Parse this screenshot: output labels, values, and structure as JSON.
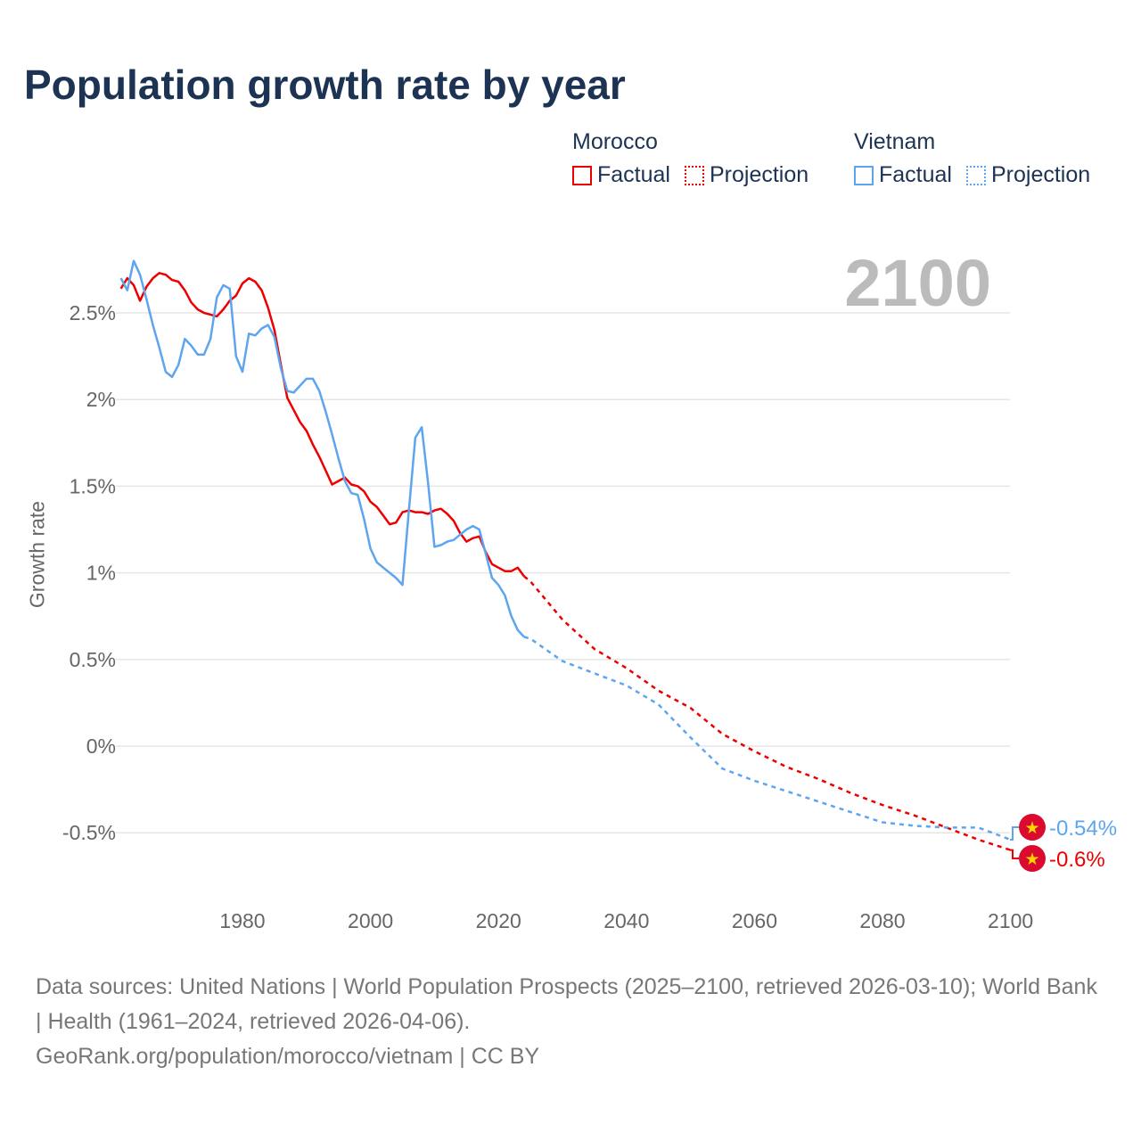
{
  "chart_data": {
    "type": "line",
    "title": "Population growth rate by year",
    "xlabel": "",
    "ylabel": "Growth rate",
    "xlim": [
      1961,
      2100
    ],
    "ylim": [
      -0.75,
      2.85
    ],
    "x_ticks": [
      "1980",
      "2000",
      "2020",
      "2040",
      "2060",
      "2080",
      "2100"
    ],
    "y_ticks": [
      {
        "value": 2.5,
        "label": "2.5%"
      },
      {
        "value": 2,
        "label": "2%"
      },
      {
        "value": 1.5,
        "label": "1.5%"
      },
      {
        "value": 1,
        "label": "1%"
      },
      {
        "value": 0.5,
        "label": "0.5%"
      },
      {
        "value": 0,
        "label": "0%"
      },
      {
        "value": -0.5,
        "label": "-0.5%"
      }
    ],
    "year_watermark": "2100",
    "grid": true,
    "legend_placement": "top-right",
    "series": [
      {
        "name": "Morocco",
        "color": "#ee0000",
        "factual_label": "Factual",
        "projection_label": "Projection",
        "end_label": "-0.6%",
        "factual": {
          "x_start": 1961,
          "values": [
            2.64,
            2.7,
            2.66,
            2.57,
            2.65,
            2.7,
            2.73,
            2.72,
            2.69,
            2.68,
            2.63,
            2.56,
            2.52,
            2.5,
            2.49,
            2.48,
            2.52,
            2.57,
            2.6,
            2.67,
            2.7,
            2.68,
            2.63,
            2.53,
            2.4,
            2.2,
            2.01,
            1.94,
            1.87,
            1.82,
            1.74,
            1.67,
            1.59,
            1.51,
            1.53,
            1.55,
            1.51,
            1.5,
            1.47,
            1.41,
            1.38,
            1.33,
            1.28,
            1.29,
            1.35,
            1.36,
            1.35,
            1.35,
            1.34,
            1.36,
            1.37,
            1.34,
            1.3,
            1.23,
            1.18,
            1.2,
            1.21,
            1.12,
            1.05,
            1.03,
            1.01,
            1.01,
            1.03,
            0.98
          ]
        },
        "projection": {
          "x": [
            2024,
            2025,
            2030,
            2035,
            2040,
            2045,
            2050,
            2055,
            2060,
            2065,
            2070,
            2075,
            2080,
            2085,
            2090,
            2095,
            2100
          ],
          "values": [
            0.98,
            0.95,
            0.73,
            0.56,
            0.45,
            0.32,
            0.22,
            0.07,
            -0.03,
            -0.12,
            -0.19,
            -0.27,
            -0.34,
            -0.4,
            -0.47,
            -0.54,
            -0.6
          ]
        }
      },
      {
        "name": "Vietnam",
        "color": "#5da5ee",
        "factual_label": "Factual",
        "projection_label": "Projection",
        "end_label": "-0.54%",
        "factual": {
          "x_start": 1961,
          "values": [
            2.7,
            2.63,
            2.8,
            2.72,
            2.58,
            2.43,
            2.3,
            2.16,
            2.13,
            2.2,
            2.35,
            2.31,
            2.26,
            2.26,
            2.35,
            2.59,
            2.66,
            2.64,
            2.25,
            2.16,
            2.38,
            2.37,
            2.41,
            2.43,
            2.36,
            2.18,
            2.05,
            2.04,
            2.08,
            2.12,
            2.12,
            2.05,
            1.93,
            1.8,
            1.66,
            1.53,
            1.46,
            1.45,
            1.31,
            1.14,
            1.06,
            1.03,
            1.0,
            0.97,
            0.93,
            1.36,
            1.78,
            1.84,
            1.52,
            1.15,
            1.16,
            1.18,
            1.19,
            1.22,
            1.25,
            1.27,
            1.25,
            1.11,
            0.97,
            0.93,
            0.87,
            0.75,
            0.67,
            0.63
          ]
        },
        "projection": {
          "x": [
            2024,
            2025,
            2030,
            2035,
            2040,
            2045,
            2050,
            2055,
            2060,
            2065,
            2070,
            2075,
            2080,
            2085,
            2090,
            2095,
            2100
          ],
          "values": [
            0.63,
            0.62,
            0.49,
            0.42,
            0.35,
            0.24,
            0.05,
            -0.13,
            -0.2,
            -0.26,
            -0.32,
            -0.38,
            -0.44,
            -0.46,
            -0.47,
            -0.47,
            -0.54
          ]
        }
      }
    ]
  },
  "footer": {
    "sources": "Data sources: United Nations | World Population Prospects (2025–2100, retrieved 2026-03-10); World Bank | Health (1961–2024, retrieved 2026-04-06).",
    "link": "GeoRank.org/population/morocco/vietnam | CC BY"
  }
}
